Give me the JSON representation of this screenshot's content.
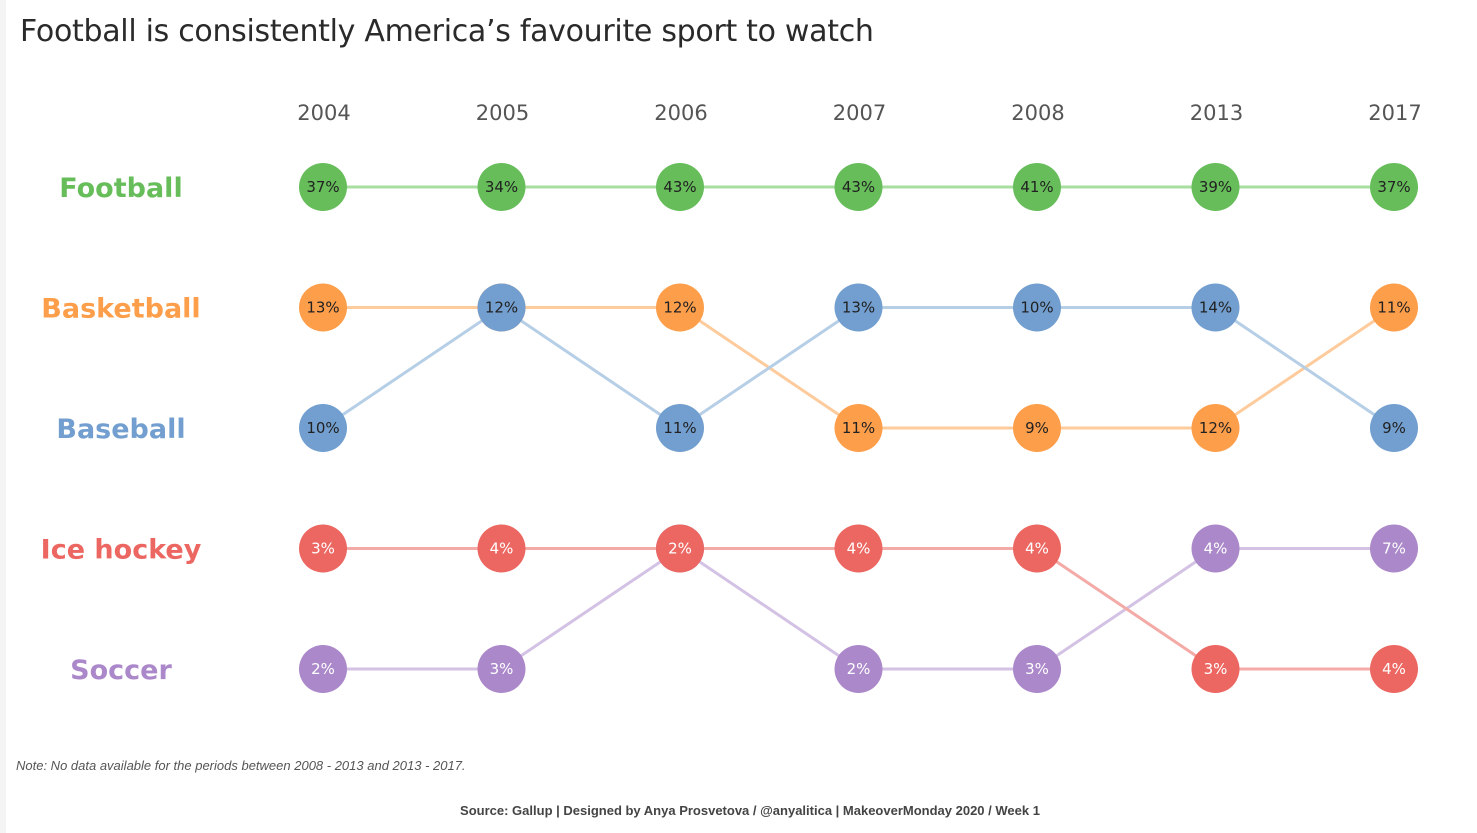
{
  "title": "Football is consistently America’s favourite sport to watch",
  "note": "Note: No data available for the periods between 2008 - 2013 and 2013 - 2017.",
  "source": "Source: Gallup | Designed by Anya Prosvetova / @anyalitica  | MakeoverMonday 2020 / Week 1",
  "chart_data": {
    "type": "bump",
    "title": "Football is consistently America’s favourite sport to watch",
    "x": [
      "2004",
      "2005",
      "2006",
      "2007",
      "2008",
      "2013",
      "2017"
    ],
    "rank_labels": [
      "Football",
      "Basketball",
      "Baseball",
      "Ice hockey",
      "Soccer"
    ],
    "series": [
      {
        "name": "Football",
        "color": "#66bd5a",
        "line": "#a9dea1",
        "text": "#222",
        "values": [
          37,
          34,
          43,
          43,
          41,
          39,
          37
        ],
        "ranks": [
          1,
          1,
          1,
          1,
          1,
          1,
          1
        ]
      },
      {
        "name": "Basketball",
        "color": "#fd9e4a",
        "line": "#fecb9d",
        "text": "#222",
        "values": [
          13,
          12,
          12,
          11,
          9,
          12,
          11
        ],
        "ranks": [
          2,
          2,
          2,
          3,
          3,
          3,
          2
        ]
      },
      {
        "name": "Baseball",
        "color": "#729fcf",
        "line": "#b6cfe6",
        "text": "#222",
        "values": [
          10,
          12,
          11,
          13,
          10,
          14,
          9
        ],
        "ranks": [
          3,
          2,
          3,
          2,
          2,
          2,
          3
        ]
      },
      {
        "name": "Soccer",
        "color": "#ab88c9",
        "line": "#d3c2e4",
        "text": "#fff",
        "values": [
          2,
          3,
          2,
          2,
          3,
          4,
          7
        ],
        "ranks": [
          5,
          5,
          4,
          5,
          5,
          4,
          4
        ]
      },
      {
        "name": "Ice hockey",
        "color": "#ec6761",
        "line": "#f4aaa6",
        "text": "#fff",
        "values": [
          3,
          4,
          2,
          4,
          4,
          3,
          4
        ],
        "ranks": [
          4,
          4,
          4,
          4,
          4,
          5,
          5
        ]
      }
    ],
    "rank_label_colors": [
      "#66bd5a",
      "#fd9e4a",
      "#729fcf",
      "#ec6761",
      "#ab88c9"
    ]
  }
}
